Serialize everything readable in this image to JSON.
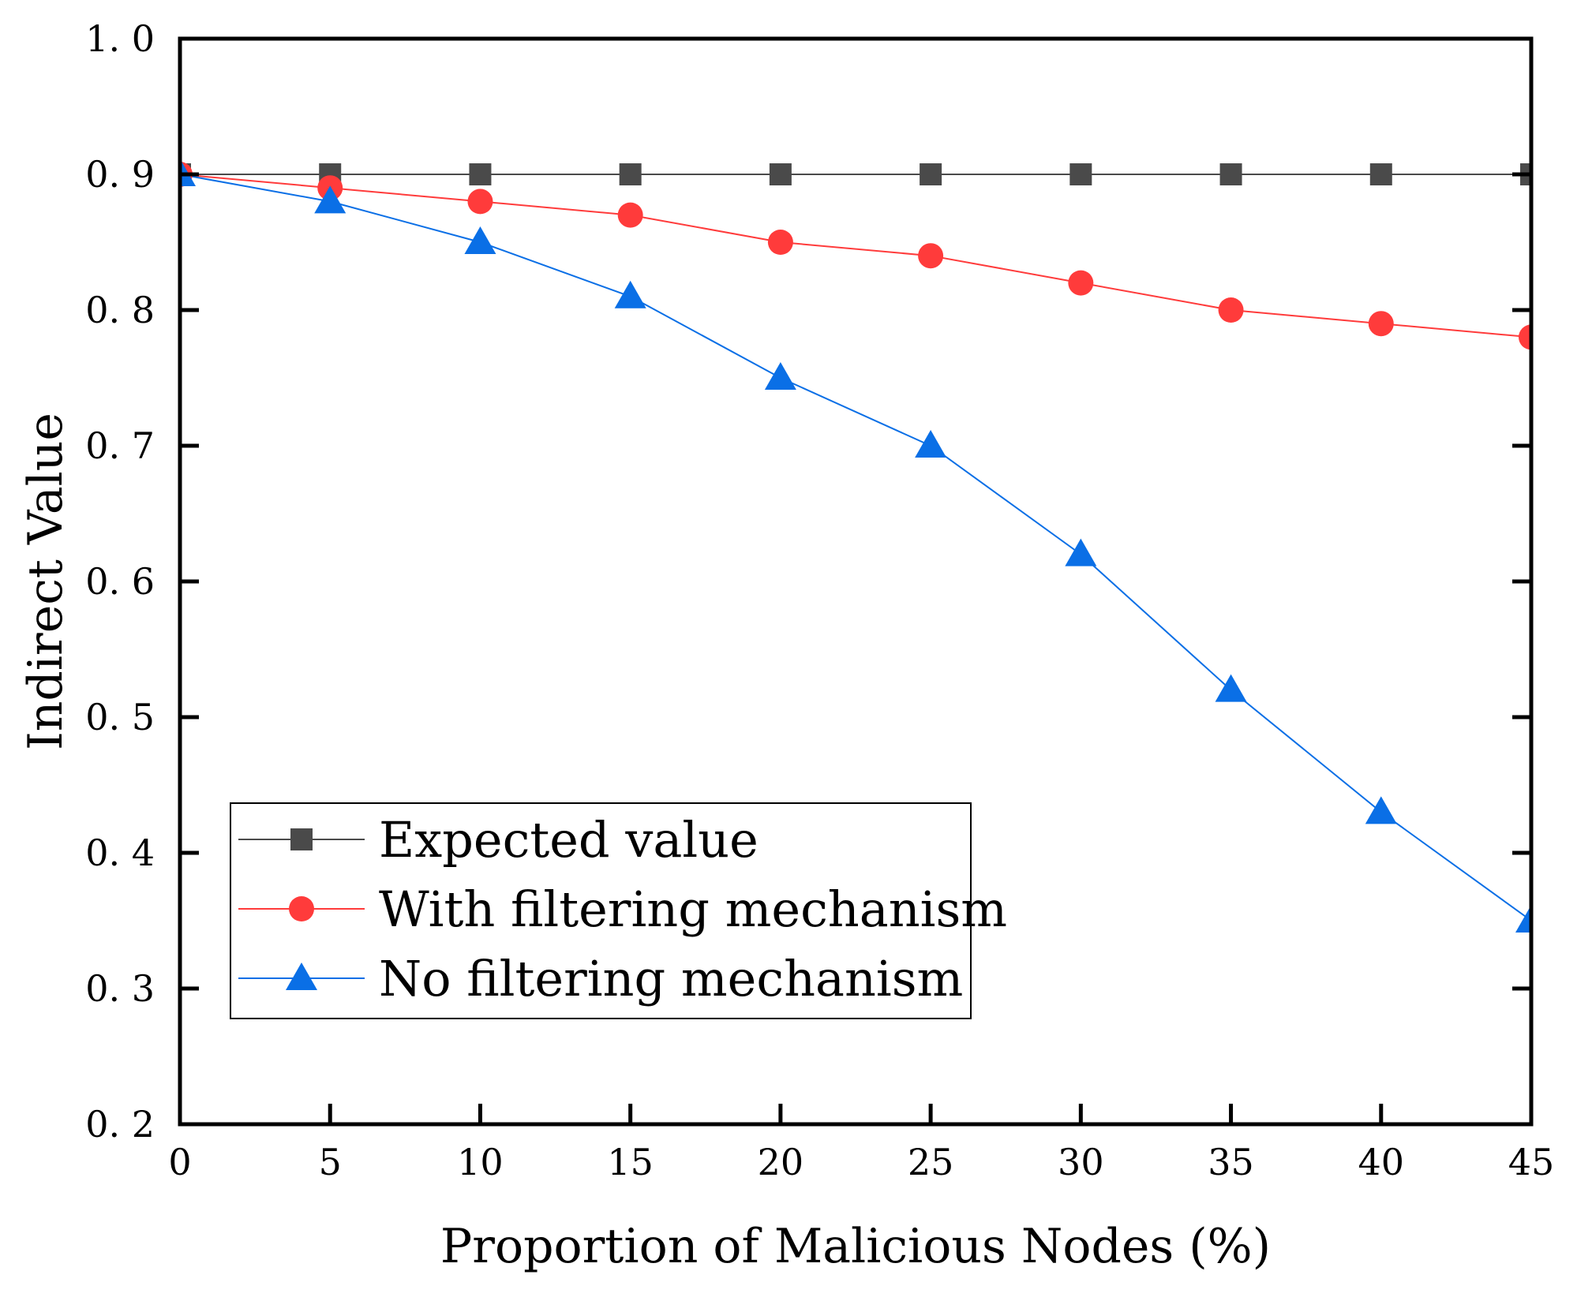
{
  "chart_data": {
    "type": "line",
    "title": "",
    "xlabel": "Proportion of Malicious Nodes (%)",
    "ylabel": "Indirect Value",
    "xlim": [
      0,
      45
    ],
    "ylim": [
      0.2,
      1.0
    ],
    "x": [
      0,
      5,
      10,
      15,
      20,
      25,
      30,
      35,
      40,
      45
    ],
    "xticks": [
      "0",
      "5",
      "10",
      "15",
      "20",
      "25",
      "30",
      "35",
      "40",
      "45"
    ],
    "yticks": [
      "0. 2",
      "0. 3",
      "0. 4",
      "0. 5",
      "0. 6",
      "0. 7",
      "0. 8",
      "0. 9",
      "1. 0"
    ],
    "grid": false,
    "legend_position": "bottom-left",
    "series": [
      {
        "name": "Expected value",
        "marker": "square",
        "color": "#4a4a4a",
        "values": [
          0.9,
          0.9,
          0.9,
          0.9,
          0.9,
          0.9,
          0.9,
          0.9,
          0.9,
          0.9
        ]
      },
      {
        "name": "With filtering mechanism",
        "marker": "circle",
        "color": "#ff3b3b",
        "values": [
          0.9,
          0.89,
          0.88,
          0.87,
          0.85,
          0.84,
          0.82,
          0.8,
          0.79,
          0.78
        ]
      },
      {
        "name": "No filtering mechanism",
        "marker": "triangle",
        "color": "#0a6fe6",
        "values": [
          0.9,
          0.88,
          0.85,
          0.81,
          0.75,
          0.7,
          0.62,
          0.52,
          0.43,
          0.35
        ]
      }
    ]
  }
}
